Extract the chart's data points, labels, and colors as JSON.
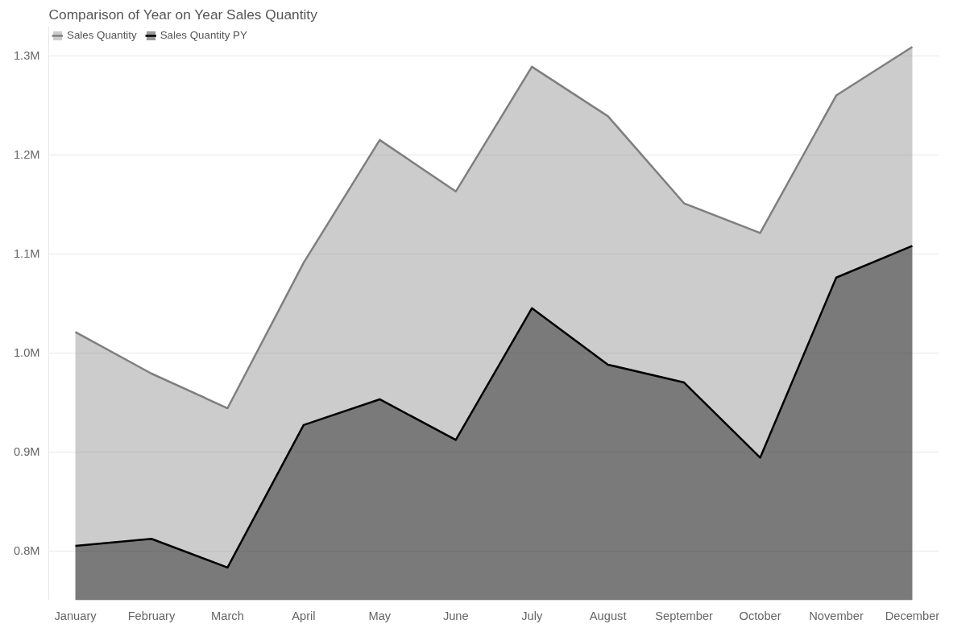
{
  "chart_data": {
    "type": "area",
    "title": "Comparison of Year on Year Sales Quantity",
    "categories": [
      "January",
      "February",
      "March",
      "April",
      "May",
      "June",
      "July",
      "August",
      "September",
      "October",
      "November",
      "December"
    ],
    "series": [
      {
        "name": "Sales Quantity",
        "color": "#7f7f7f",
        "values": [
          1021000,
          979000,
          944000,
          1091000,
          1215000,
          1163000,
          1289000,
          1239000,
          1151000,
          1121000,
          1260000,
          1309000
        ]
      },
      {
        "name": "Sales Quantity PY",
        "color": "#000000",
        "values": [
          805000,
          812000,
          783000,
          927000,
          953000,
          912000,
          1045000,
          988000,
          970000,
          894000,
          1076000,
          1108000
        ]
      }
    ],
    "ylim": [
      750000,
      1330000
    ],
    "yticks": [
      {
        "value": 800000,
        "label": "0.8M"
      },
      {
        "value": 900000,
        "label": "0.9M"
      },
      {
        "value": 1000000,
        "label": "1.0M"
      },
      {
        "value": 1100000,
        "label": "1.1M"
      },
      {
        "value": 1200000,
        "label": "1.2M"
      },
      {
        "value": 1300000,
        "label": "1.3M"
      }
    ],
    "grid": "y",
    "legend": "top left"
  }
}
